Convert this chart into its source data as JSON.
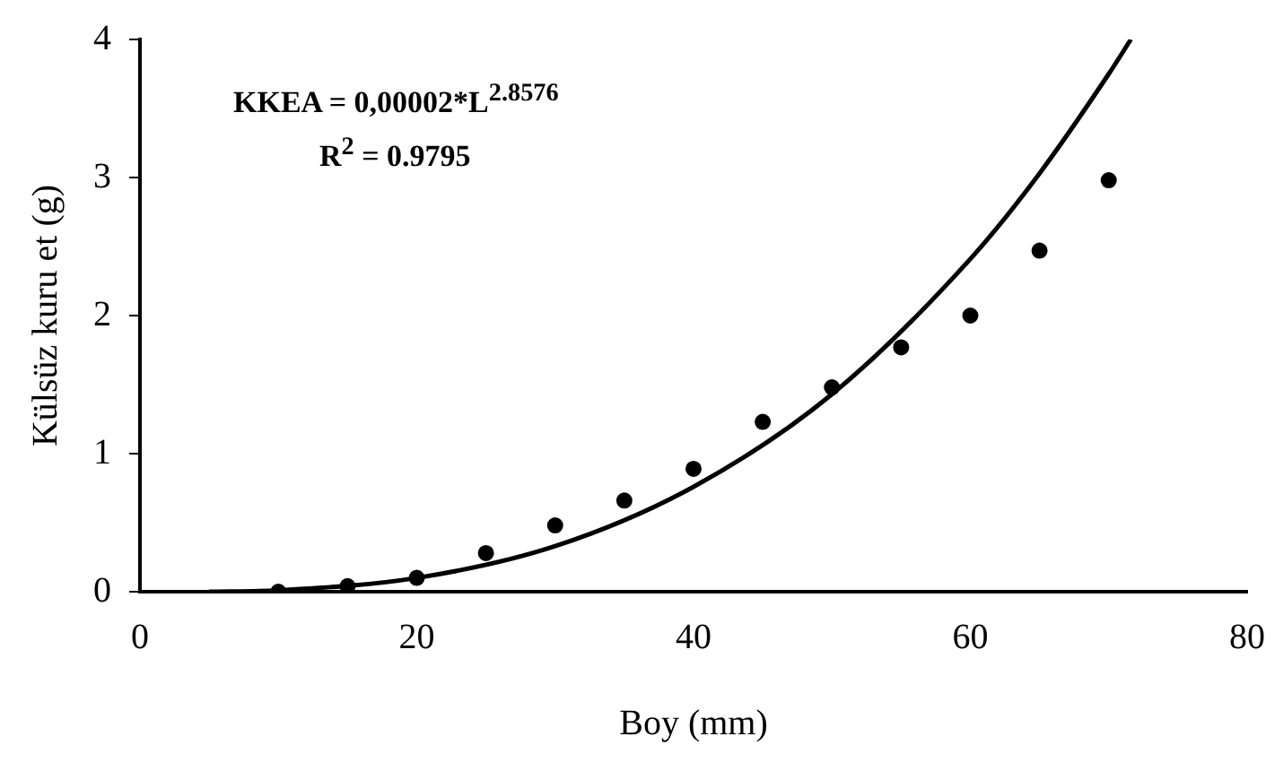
{
  "chart_data": {
    "type": "scatter",
    "xlabel": "Boy (mm)",
    "ylabel": "Külsüz kuru et (g)",
    "xlim": [
      0,
      80
    ],
    "xticks": [
      0,
      20,
      40,
      60,
      80
    ],
    "ylim": [
      0,
      4
    ],
    "yticks": [
      0,
      1,
      2,
      3,
      4
    ],
    "grid": false,
    "legend": false,
    "marker": "circle",
    "annotations": [
      "KKEA = 0,00002*L$^{2.8576}$",
      "R$^{2}$ = 0.9795"
    ],
    "series": [
      {
        "color": "#000000",
        "x": [
          10,
          15,
          20,
          25,
          30,
          35,
          40,
          45,
          50,
          55,
          60,
          65,
          70
        ],
        "values": [
          0,
          0.04,
          0.1,
          0.28,
          0.48,
          0.66,
          0.89,
          1.23,
          1.48,
          1.77,
          2.0,
          2.47,
          2.98
        ]
      },
      {
        "type": "line",
        "color": "#000000",
        "marker": "none",
        "x": [
          5,
          10,
          20,
          30,
          40,
          50,
          60,
          65,
          70,
          71.6
        ],
        "values": [
          0,
          0.01,
          0.1,
          0.33,
          0.76,
          1.43,
          2.41,
          3.03,
          3.75,
          4
        ]
      }
    ]
  }
}
